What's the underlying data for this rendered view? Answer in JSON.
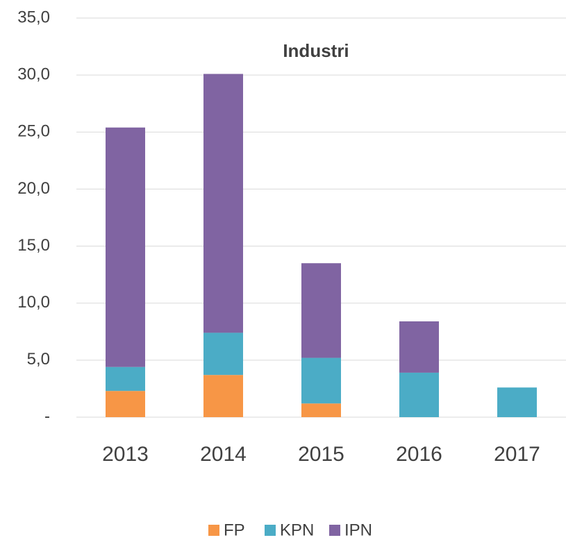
{
  "chart_data": {
    "type": "stacked_bar",
    "title": "Industri",
    "categories": [
      "2013",
      "2014",
      "2015",
      "2016",
      "2017"
    ],
    "series": [
      {
        "name": "FP",
        "color": "#f79646",
        "values": [
          2.3,
          3.7,
          1.2,
          0,
          0
        ]
      },
      {
        "name": "KPN",
        "color": "#4bacc6",
        "values": [
          2.1,
          3.7,
          4.0,
          3.9,
          2.6
        ]
      },
      {
        "name": "IPN",
        "color": "#8064a2",
        "values": [
          21.0,
          22.7,
          8.3,
          4.5,
          0
        ]
      }
    ],
    "ylim": [
      0,
      35
    ],
    "yticks": [
      {
        "value": 0,
        "label": "-"
      },
      {
        "value": 5,
        "label": "5,0"
      },
      {
        "value": 10,
        "label": "10,0"
      },
      {
        "value": 15,
        "label": "15,0"
      },
      {
        "value": 20,
        "label": "20,0"
      },
      {
        "value": 25,
        "label": "25,0"
      },
      {
        "value": 30,
        "label": "30,0"
      },
      {
        "value": 35,
        "label": "35,0"
      }
    ],
    "grid": true,
    "legend": "bottom"
  }
}
